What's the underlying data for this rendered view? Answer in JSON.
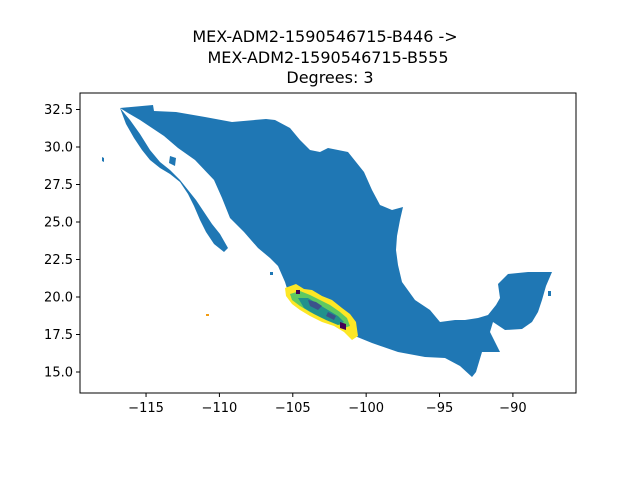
{
  "figure": {
    "title_lines": [
      "MEX-ADM2-1590546715-B446 ->",
      "MEX-ADM2-1590546715-B555",
      "Degrees: 3"
    ]
  },
  "map": {
    "country_fill": "#1f77b4",
    "colormap": [
      "#440154",
      "#3b528b",
      "#21918c",
      "#5ec962",
      "#fde725"
    ],
    "xlim": [
      -119.5,
      -85.7
    ],
    "ylim": [
      13.6,
      33.6
    ],
    "x_ticks": [
      {
        "value": -115,
        "label": "−115"
      },
      {
        "value": -110,
        "label": "−110"
      },
      {
        "value": -105,
        "label": "−105"
      },
      {
        "value": -100,
        "label": "−100"
      },
      {
        "value": -95,
        "label": "−95"
      },
      {
        "value": -90,
        "label": "−90"
      }
    ],
    "y_ticks": [
      {
        "value": 15.0,
        "label": "15.0"
      },
      {
        "value": 17.5,
        "label": "17.5"
      },
      {
        "value": 20.0,
        "label": "20.0"
      },
      {
        "value": 22.5,
        "label": "22.5"
      },
      {
        "value": 25.0,
        "label": "25.0"
      },
      {
        "value": 27.5,
        "label": "27.5"
      },
      {
        "value": 30.0,
        "label": "30.0"
      },
      {
        "value": 32.5,
        "label": "32.5"
      }
    ]
  }
}
